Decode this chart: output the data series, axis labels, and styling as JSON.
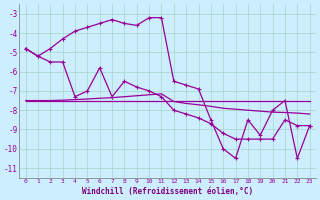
{
  "bg_color": "#cceeff",
  "grid_color": "#aaddcc",
  "line_color": "#990099",
  "xlabel": "Windchill (Refroidissement éolien,°C)",
  "xlabel_color": "#800080",
  "ylim": [
    -11.5,
    -2.5
  ],
  "xlim": [
    -0.5,
    23.5
  ],
  "yticks": [
    -11,
    -10,
    -9,
    -8,
    -7,
    -6,
    -5,
    -4,
    -3
  ],
  "xticks": [
    0,
    1,
    2,
    3,
    4,
    5,
    6,
    7,
    8,
    9,
    10,
    11,
    12,
    13,
    14,
    15,
    16,
    17,
    18,
    19,
    20,
    21,
    22,
    23
  ],
  "series1_x": [
    0,
    1,
    2,
    3,
    4,
    5,
    6,
    7,
    8,
    9,
    10,
    11,
    12,
    13,
    14,
    15,
    16,
    17,
    18,
    19,
    20,
    21,
    22,
    23
  ],
  "series1_y": [
    -4.8,
    -5.2,
    -4.8,
    -4.3,
    -3.9,
    -3.7,
    -3.5,
    -3.3,
    -3.5,
    -3.6,
    -3.2,
    -3.2,
    -6.5,
    -6.7,
    -6.9,
    -8.5,
    -10.0,
    -10.5,
    -8.5,
    -9.3,
    -8.0,
    -7.5,
    -10.5,
    -8.8
  ],
  "series2_x": [
    0,
    1,
    2,
    3,
    4,
    5,
    6,
    7,
    8,
    9,
    10,
    11,
    12,
    13,
    14,
    15,
    16,
    17,
    18,
    19,
    20,
    21,
    22,
    23
  ],
  "series2_y": [
    -4.8,
    -5.2,
    -5.5,
    -5.5,
    -7.3,
    -7.0,
    -5.8,
    -7.3,
    -6.5,
    -6.8,
    -7.0,
    -7.3,
    -8.0,
    -8.2,
    -8.4,
    -8.7,
    -9.2,
    -9.5,
    -9.5,
    -9.5,
    -9.5,
    -8.5,
    -8.8,
    -8.8
  ],
  "series3_x": [
    0,
    1,
    2,
    3,
    4,
    5,
    6,
    7,
    8,
    9,
    10,
    11,
    12,
    13,
    14,
    15,
    16,
    17,
    18,
    19,
    20,
    21,
    22,
    23
  ],
  "series3_y": [
    -7.5,
    -7.5,
    -7.5,
    -7.5,
    -7.5,
    -7.5,
    -7.5,
    -7.5,
    -7.5,
    -7.5,
    -7.5,
    -7.5,
    -7.5,
    -7.5,
    -7.5,
    -7.5,
    -7.5,
    -7.5,
    -7.5,
    -7.5,
    -7.5,
    -7.5,
    -7.5,
    -7.5
  ],
  "series4_x": [
    0,
    1,
    2,
    3,
    4,
    5,
    6,
    7,
    8,
    9,
    10,
    11,
    12,
    13,
    14,
    15,
    16,
    17,
    18,
    19,
    20,
    21,
    22,
    23
  ],
  "series4_y": [
    -7.5,
    -7.5,
    -7.5,
    -7.48,
    -7.45,
    -7.42,
    -7.38,
    -7.35,
    -7.3,
    -7.25,
    -7.2,
    -7.15,
    -7.55,
    -7.65,
    -7.72,
    -7.8,
    -7.9,
    -7.95,
    -8.0,
    -8.05,
    -8.1,
    -8.12,
    -8.15,
    -8.2
  ]
}
